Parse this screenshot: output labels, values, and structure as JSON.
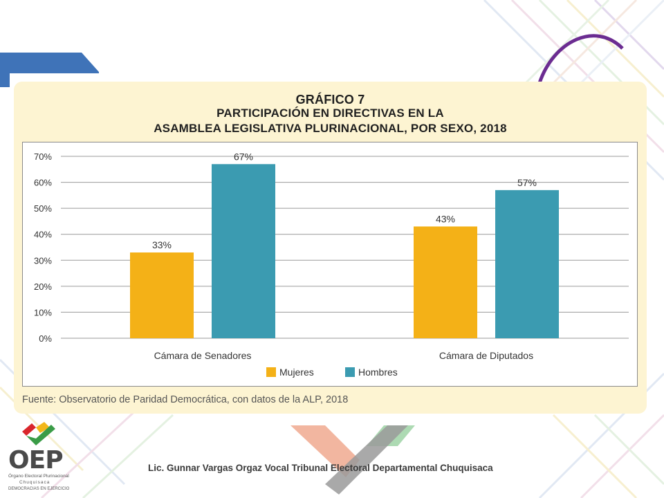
{
  "chart_data": {
    "type": "bar",
    "title": [
      "GRÁFICO 7",
      "PARTICIPACIÓN EN DIRECTIVAS EN LA",
      "ASAMBLEA LEGISLATIVA PLURINACIONAL, POR SEXO, 2018"
    ],
    "categories": [
      "Cámara de Senadores",
      "Cámara de Diputados"
    ],
    "series": [
      {
        "name": "Mujeres",
        "values": [
          33,
          43
        ],
        "color": "#f4b117"
      },
      {
        "name": "Hombres",
        "values": [
          67,
          57
        ],
        "color": "#3b9bb1"
      }
    ],
    "ylim": [
      0,
      70
    ],
    "yticks": [
      0,
      10,
      20,
      30,
      40,
      50,
      60,
      70
    ],
    "value_suffix": "%",
    "grid": true,
    "legend": "bottom-center",
    "source": "Fuente: Observatorio de Paridad Democrática, con datos de la ALP, 2018"
  },
  "footer": {
    "text": "Lic. Gunnar Vargas Orgaz Vocal Tribunal Electoral Departamental Chuquisaca"
  },
  "logo": {
    "wordmark": "OEP",
    "line1": "Órgano Electoral Plurinacional",
    "line2": "Chuquisaca",
    "line3": "DEMOCRACIAS EN EJERCICIO"
  }
}
